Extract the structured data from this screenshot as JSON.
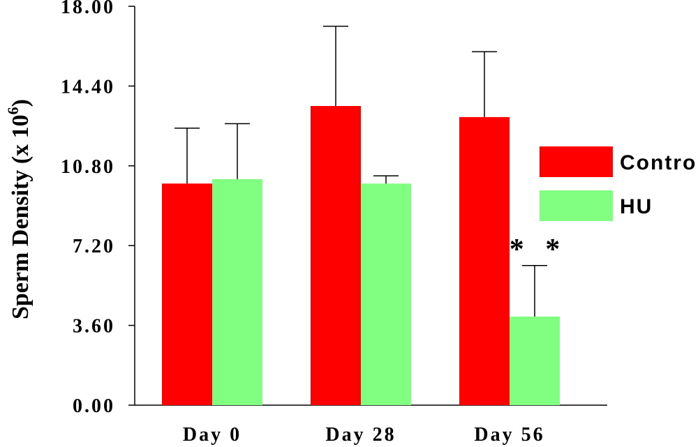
{
  "chart_data": {
    "type": "bar",
    "title": "",
    "xlabel": "",
    "ylabel": "Sperm Density (x 10",
    "ylabel_superscript": "6",
    "ylabel_suffix": ")",
    "categories": [
      "Day 0",
      "Day 28",
      "Day 56"
    ],
    "ylim": [
      0,
      18
    ],
    "yticks": [
      0,
      3.6,
      7.2,
      10.8,
      14.4,
      18
    ],
    "ytick_labels": [
      "0.00",
      "3.60",
      "7.20",
      "10.80",
      "14.40",
      "18.00"
    ],
    "series": [
      {
        "name": "Control",
        "color": "#ff0000",
        "values": [
          10.0,
          13.5,
          13.0
        ],
        "errors": [
          2.5,
          3.6,
          2.95
        ]
      },
      {
        "name": "HU",
        "color": "#80ff80",
        "values": [
          10.2,
          10.0,
          4.0
        ],
        "errors": [
          2.5,
          0.35,
          2.3
        ]
      }
    ],
    "legend_position": "right",
    "annotations": [
      {
        "text": "* *",
        "category": "Day 56",
        "series": "HU"
      }
    ]
  }
}
